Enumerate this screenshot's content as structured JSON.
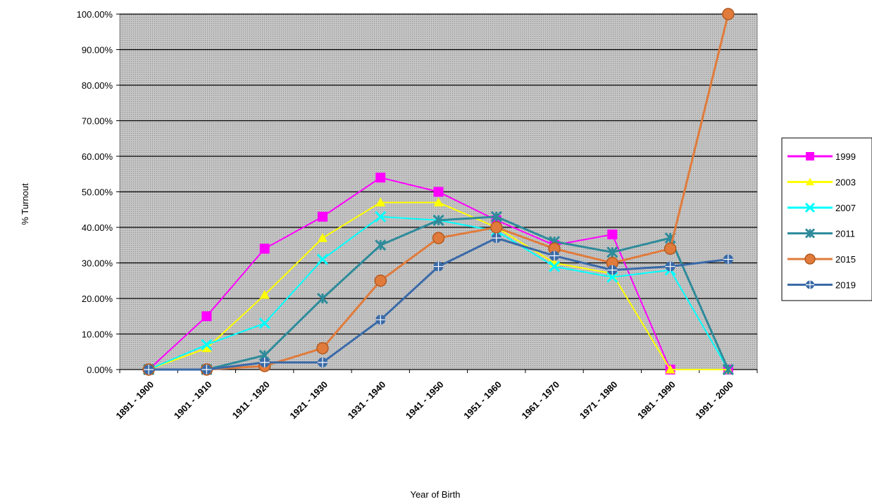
{
  "chart_data": {
    "type": "line",
    "title": "",
    "xlabel": "Year of Birth",
    "ylabel": "% Turnout",
    "categories": [
      "1891 - 1900",
      "1901 - 1910",
      "1911 - 1920",
      "1921 - 1930",
      "1931 - 1940",
      "1941 - 1950",
      "1951 - 1960",
      "1961 - 1970",
      "1971 - 1980",
      "1981 - 1990",
      "1991 - 2000"
    ],
    "y_ticks": [
      "0.00%",
      "10.00%",
      "20.00%",
      "30.00%",
      "40.00%",
      "50.00%",
      "60.00%",
      "70.00%",
      "80.00%",
      "90.00%",
      "100.00%"
    ],
    "ylim": [
      0,
      100
    ],
    "grid": true,
    "plot_background": "#b8b8b8",
    "legend_position": "right",
    "series": [
      {
        "name": "1999",
        "color": "#ff00ff",
        "marker": "square",
        "values": [
          0,
          15,
          34,
          43,
          54,
          50,
          42,
          35,
          38,
          0,
          0
        ]
      },
      {
        "name": "2003",
        "color": "#ffff00",
        "marker": "triangle",
        "values": [
          0,
          6,
          21,
          37,
          47,
          47,
          40,
          30,
          27,
          0,
          0
        ]
      },
      {
        "name": "2007",
        "color": "#00ffff",
        "marker": "x",
        "values": [
          0,
          7,
          13,
          31,
          43,
          42,
          39,
          29,
          26,
          28,
          0
        ]
      },
      {
        "name": "2011",
        "color": "#2e8b9a",
        "marker": "star",
        "values": [
          0,
          0,
          4,
          20,
          35,
          42,
          43,
          36,
          33,
          37,
          0
        ]
      },
      {
        "name": "2015",
        "color": "#e07b3c",
        "marker": "circle",
        "values": [
          0,
          0,
          1,
          6,
          25,
          37,
          40,
          34,
          30,
          34,
          100
        ]
      },
      {
        "name": "2019",
        "color": "#3a6aa8",
        "marker": "plus",
        "values": [
          0,
          0,
          2,
          2,
          14,
          29,
          37,
          32,
          28,
          29,
          31
        ]
      }
    ]
  }
}
